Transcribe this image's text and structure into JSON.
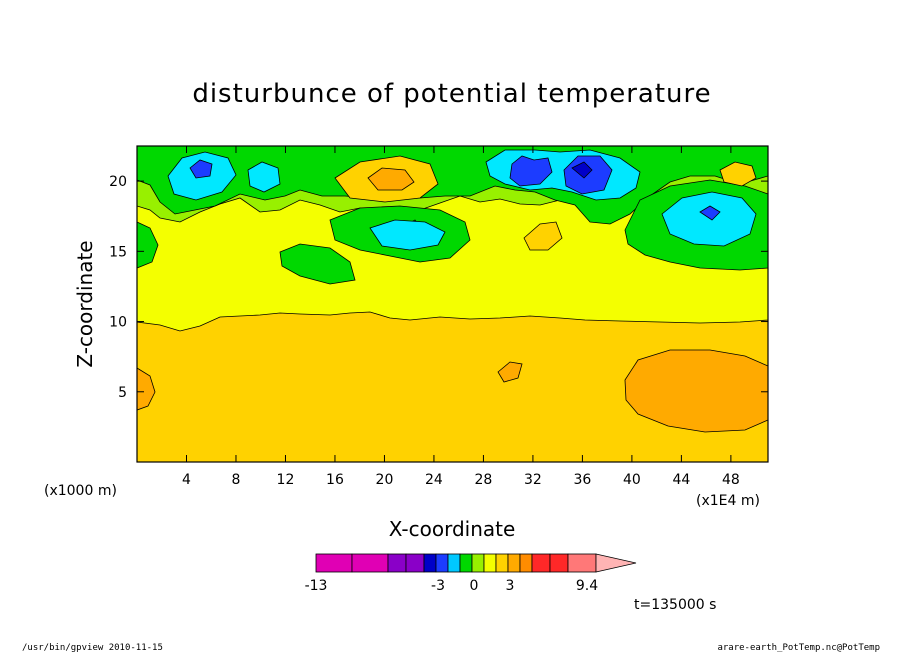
{
  "chart_data": {
    "type": "heatmap",
    "title": "disturbunce of potential temperature",
    "xlabel": "X-coordinate",
    "ylabel": "Z-coordinate",
    "x_unit_left": "(x1000 m)",
    "x_unit_right": "(x1E4 m)",
    "x_ticks": [
      "4",
      "8",
      "12",
      "16",
      "20",
      "24",
      "28",
      "32",
      "36",
      "40",
      "44",
      "48"
    ],
    "y_ticks": [
      "5",
      "10",
      "15",
      "20"
    ],
    "xlim": [
      0,
      51
    ],
    "ylim": [
      0,
      22.5
    ],
    "colorbar": {
      "colors": [
        "#e000b4",
        "#e000b4",
        "#8a00c8",
        "#8a00c8",
        "#0000c8",
        "#1c3cff",
        "#00c8ff",
        "#00d800",
        "#98f000",
        "#f4ff00",
        "#ffd200",
        "#ffaa00",
        "#ff8c00",
        "#ff2828",
        "#ff2828",
        "#ff7878",
        "#ffb4b4"
      ],
      "tick_labels": [
        "-13",
        "-3",
        "0",
        "3",
        "9.4"
      ]
    },
    "contour_levels": [
      "-3",
      "-2",
      "-1",
      "0",
      "1",
      "2",
      "3"
    ],
    "annotation": "t=135000 s"
  },
  "footer": {
    "left": "/usr/bin/gpview   2010-11-15",
    "right": "arare-earth_PotTemp.nc@PotTemp"
  }
}
